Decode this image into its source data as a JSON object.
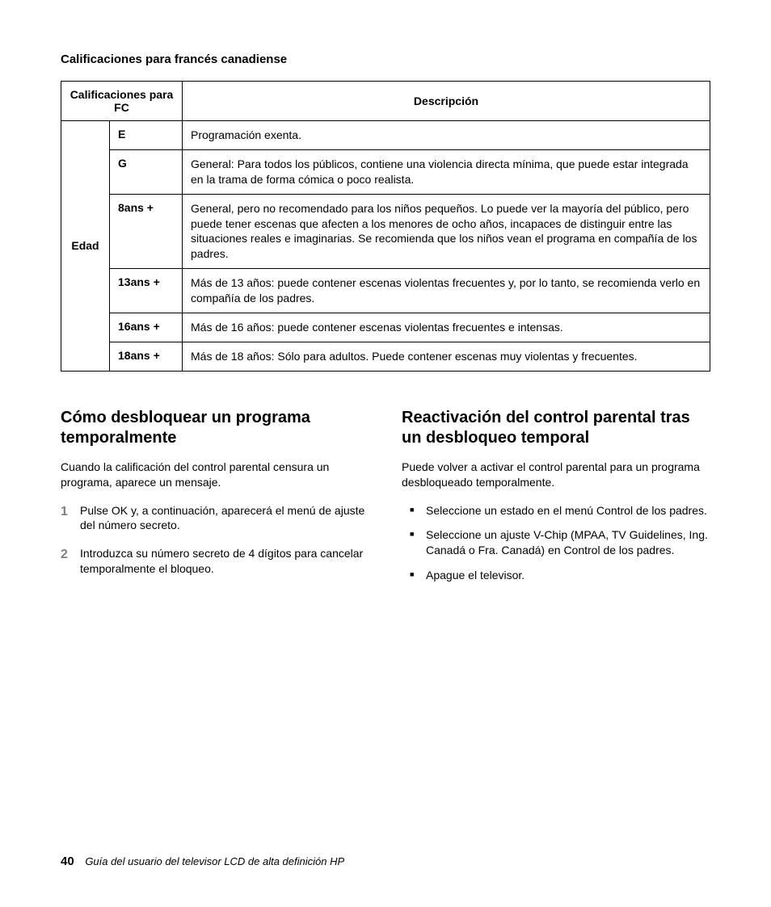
{
  "section_title": "Calificaciones para francés canadiense",
  "table": {
    "header_col1": "Calificaciones para FC",
    "header_col2": "Descripción",
    "row_label": "Edad",
    "rows": [
      {
        "rating": "E",
        "desc": "Programación exenta."
      },
      {
        "rating": "G",
        "desc": "General: Para todos los públicos, contiene una violencia directa mínima, que puede estar integrada en la trama de forma cómica o poco realista."
      },
      {
        "rating": "8ans +",
        "desc": "General, pero no recomendado para los niños pequeños. Lo puede ver la mayoría del público, pero puede tener escenas que afecten a los menores de ocho años, incapaces de distinguir entre las situaciones reales e imaginarias. Se recomienda que los niños vean el programa en compañía de los padres."
      },
      {
        "rating": "13ans +",
        "desc": "Más de 13 años: puede contener escenas violentas frecuentes y, por lo tanto, se recomienda verlo en compañía de los padres."
      },
      {
        "rating": "16ans +",
        "desc": "Más de 16 años: puede contener escenas violentas frecuentes e intensas."
      },
      {
        "rating": "18ans +",
        "desc": "Más de 18 años: Sólo para adultos. Puede contener escenas muy violentas y frecuentes."
      }
    ]
  },
  "left": {
    "heading": "Cómo desbloquear un programa temporalmente",
    "intro": "Cuando la calificación del control parental censura un programa, aparece un mensaje.",
    "steps": [
      "Pulse OK y, a continuación, aparecerá el menú de ajuste del número secreto.",
      "Introduzca su número secreto de 4 dígitos para cancelar temporalmente el bloqueo."
    ]
  },
  "right": {
    "heading": "Reactivación del control parental tras un desbloqueo temporal",
    "intro": "Puede volver a activar el control parental para un programa desbloqueado temporalmente.",
    "bullets": [
      "Seleccione un estado en el menú Control de los padres.",
      "Seleccione un ajuste V-Chip (MPAA, TV Guidelines, Ing. Canadá o Fra. Canadá) en Control de los padres.",
      "Apague el televisor."
    ]
  },
  "footer": {
    "page": "40",
    "title": "Guía del usuario del televisor LCD de alta definición HP"
  }
}
